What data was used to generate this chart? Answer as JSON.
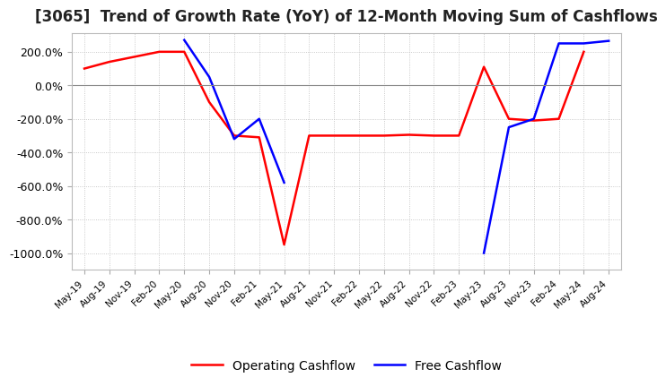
{
  "title": "[3065]  Trend of Growth Rate (YoY) of 12-Month Moving Sum of Cashflows",
  "title_fontsize": 12,
  "ylim": [
    -1100,
    310
  ],
  "yticks": [
    200.0,
    0.0,
    -200.0,
    -400.0,
    -600.0,
    -800.0,
    -1000.0
  ],
  "legend_labels": [
    "Operating Cashflow",
    "Free Cashflow"
  ],
  "legend_colors": [
    "red",
    "blue"
  ],
  "x_labels": [
    "May-19",
    "Aug-19",
    "Nov-19",
    "Feb-20",
    "May-20",
    "Aug-20",
    "Nov-20",
    "Feb-21",
    "May-21",
    "Aug-21",
    "Nov-21",
    "Feb-22",
    "May-22",
    "Aug-22",
    "Nov-22",
    "Feb-23",
    "May-23",
    "Aug-23",
    "Nov-23",
    "Feb-24",
    "May-24",
    "Aug-24"
  ],
  "operating_cashflow": [
    100,
    140,
    170,
    200,
    200,
    -100,
    -300,
    -310,
    -950,
    -300,
    -300,
    -300,
    -300,
    -295,
    -300,
    -300,
    110,
    -200,
    -210,
    -200,
    200,
    null
  ],
  "free_cashflow": [
    null,
    null,
    null,
    null,
    270,
    50,
    -320,
    -200,
    -580,
    null,
    null,
    null,
    null,
    null,
    null,
    null,
    -1000,
    -250,
    -200,
    250,
    250,
    265
  ],
  "grid_color": "#bbbbbb",
  "grid_linestyle": ":",
  "background_color": "#ffffff",
  "line_width": 1.8,
  "zero_line_color": "#888888"
}
